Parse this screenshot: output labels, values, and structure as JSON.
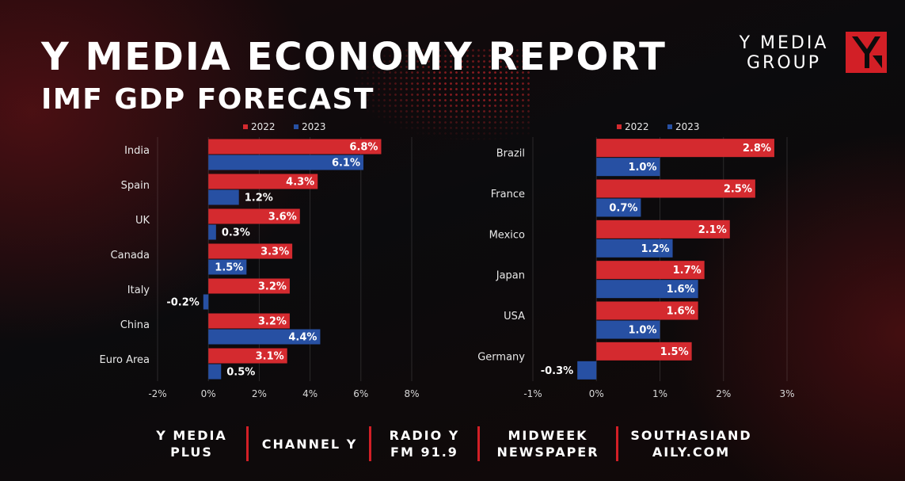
{
  "header": {
    "title": "Y MEDIA ECONOMY REPORT",
    "subtitle": "IMF GDP FORECAST"
  },
  "logo": {
    "line1": "Y MEDIA",
    "line2": "GROUP",
    "icon": "y-media-logo-icon"
  },
  "colors": {
    "series_2022": "#d42a2f",
    "series_2023": "#2750a3",
    "accent": "#d21f26"
  },
  "chart_data": [
    {
      "type": "bar",
      "orientation": "horizontal",
      "title": "",
      "categories": [
        "India",
        "Spain",
        "UK",
        "Canada",
        "Italy",
        "China",
        "Euro Area"
      ],
      "series": [
        {
          "name": "2022",
          "values": [
            6.8,
            4.3,
            3.6,
            3.3,
            3.2,
            3.2,
            3.1
          ],
          "labels": [
            "6.8%",
            "4.3%",
            "3.6%",
            "3.3%",
            "3.2%",
            "3.2%",
            "3.1%"
          ]
        },
        {
          "name": "2023",
          "values": [
            6.1,
            1.2,
            0.3,
            1.5,
            -0.2,
            4.4,
            0.5
          ],
          "labels": [
            "6.1%",
            "1.2%",
            "0.3%",
            "1.5%",
            "-0.2%",
            "4.4%",
            "0.5%"
          ]
        }
      ],
      "xlim": [
        -2,
        8
      ],
      "xticks": [
        -2,
        0,
        2,
        4,
        6,
        8
      ],
      "xtick_labels": [
        "-2%",
        "0%",
        "2%",
        "4%",
        "6%",
        "8%"
      ],
      "xlabel": "",
      "ylabel": "",
      "legend": "top-center",
      "grid": true
    },
    {
      "type": "bar",
      "orientation": "horizontal",
      "title": "",
      "categories": [
        "Brazil",
        "France",
        "Mexico",
        "Japan",
        "USA",
        "Germany"
      ],
      "series": [
        {
          "name": "2022",
          "values": [
            2.8,
            2.5,
            2.1,
            1.7,
            1.6,
            1.5
          ],
          "labels": [
            "2.8%",
            "2.5%",
            "2.1%",
            "1.7%",
            "1.6%",
            "1.5%"
          ]
        },
        {
          "name": "2023",
          "values": [
            1.0,
            0.7,
            1.2,
            1.6,
            1.0,
            -0.3
          ],
          "labels": [
            "1.0%",
            "0.7%",
            "1.2%",
            "1.6%",
            "1.0%",
            "-0.3%"
          ]
        }
      ],
      "xlim": [
        -1,
        3
      ],
      "xticks": [
        -1,
        0,
        1,
        2,
        3
      ],
      "xtick_labels": [
        "-1%",
        "0%",
        "1%",
        "2%",
        "3%"
      ],
      "xlabel": "",
      "ylabel": "",
      "legend": "top-center",
      "grid": true
    }
  ],
  "footer": {
    "items": [
      {
        "line1": "Y MEDIA",
        "line2": "PLUS"
      },
      {
        "line1": "CHANNEL Y",
        "line2": ""
      },
      {
        "line1": "RADIO Y",
        "line2": "FM 91.9"
      },
      {
        "line1": "MIDWEEK",
        "line2": "NEWSPAPER"
      },
      {
        "line1": "SOUTHASIAND",
        "line2": "AILY.COM"
      }
    ]
  }
}
